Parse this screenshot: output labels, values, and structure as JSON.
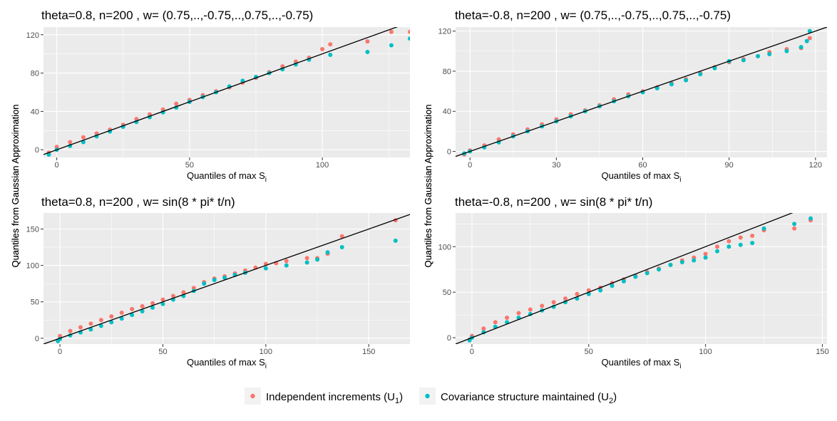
{
  "colors": {
    "independent": "#F8766D",
    "covariance": "#00BFC4",
    "panel_bg": "#EBEBEB",
    "grid": "#FFFFFF",
    "line": "#000000"
  },
  "legend": {
    "independent": {
      "label": "Independent increments (U",
      "sub": "1",
      "close": ")"
    },
    "covariance": {
      "label": "Covariance structure maintained (U",
      "sub": "2",
      "close": ")"
    }
  },
  "chart_data": [
    {
      "type": "scatter",
      "title": "theta=0.8, n=200 , w= (0.75,..,-0.75,..,0.75,..,-0.75)",
      "xlabel": "Quantiles of max S",
      "xlabel_sub": "i",
      "ylabel": "Quantiles from Gaussian Approximation",
      "xlim": [
        -5,
        133
      ],
      "ylim": [
        -8,
        128
      ],
      "xticks": [
        0,
        50,
        100
      ],
      "yticks": [
        0,
        40,
        80,
        120
      ],
      "reference_line": {
        "slope": 1,
        "intercept": 0
      },
      "series": [
        {
          "key": "independent",
          "values": [
            [
              -3,
              -3
            ],
            [
              0,
              3
            ],
            [
              5,
              8
            ],
            [
              10,
              13
            ],
            [
              15,
              17
            ],
            [
              20,
              21
            ],
            [
              25,
              26
            ],
            [
              30,
              32
            ],
            [
              35,
              37
            ],
            [
              40,
              42
            ],
            [
              45,
              48
            ],
            [
              50,
              52
            ],
            [
              55,
              57
            ],
            [
              60,
              61
            ],
            [
              65,
              65
            ],
            [
              70,
              70
            ],
            [
              75,
              75
            ],
            [
              80,
              81
            ],
            [
              85,
              87
            ],
            [
              90,
              92
            ],
            [
              95,
              96
            ],
            [
              100,
              105
            ],
            [
              103,
              110
            ],
            [
              117,
              113
            ],
            [
              126,
              123
            ],
            [
              133,
              123
            ]
          ]
        },
        {
          "key": "covariance",
          "values": [
            [
              -3,
              -5
            ],
            [
              0,
              0
            ],
            [
              5,
              4
            ],
            [
              10,
              8
            ],
            [
              15,
              14
            ],
            [
              20,
              19
            ],
            [
              25,
              24
            ],
            [
              30,
              29
            ],
            [
              35,
              34
            ],
            [
              40,
              39
            ],
            [
              45,
              44
            ],
            [
              50,
              50
            ],
            [
              55,
              55
            ],
            [
              60,
              60
            ],
            [
              65,
              66
            ],
            [
              70,
              72
            ],
            [
              75,
              76
            ],
            [
              80,
              80
            ],
            [
              85,
              84
            ],
            [
              90,
              89
            ],
            [
              95,
              94
            ],
            [
              103,
              99
            ],
            [
              117,
              102
            ],
            [
              126,
              109
            ],
            [
              133,
              116
            ]
          ]
        }
      ]
    },
    {
      "type": "scatter",
      "title": "theta=-0.8, n=200 , w= (0.75,..,-0.75,..,0.75,..,-0.75)",
      "xlabel": "Quantiles of max S",
      "xlabel_sub": "i",
      "ylabel": "Quantiles from Gaussian Approximation",
      "xlim": [
        -5,
        124
      ],
      "ylim": [
        -6,
        124
      ],
      "xticks": [
        0,
        30,
        60,
        90,
        120
      ],
      "yticks": [
        0,
        40,
        80,
        120
      ],
      "reference_line": {
        "slope": 1,
        "intercept": 0
      },
      "series": [
        {
          "key": "independent",
          "values": [
            [
              -2,
              -3
            ],
            [
              0,
              1
            ],
            [
              5,
              6
            ],
            [
              10,
              12
            ],
            [
              15,
              17
            ],
            [
              20,
              22
            ],
            [
              25,
              27
            ],
            [
              30,
              32
            ],
            [
              35,
              37
            ],
            [
              40,
              41
            ],
            [
              45,
              46
            ],
            [
              50,
              52
            ],
            [
              55,
              57
            ],
            [
              60,
              60
            ],
            [
              65,
              64
            ],
            [
              70,
              68
            ],
            [
              75,
              72
            ],
            [
              80,
              78
            ],
            [
              85,
              84
            ],
            [
              90,
              89
            ],
            [
              95,
              92
            ],
            [
              100,
              95
            ],
            [
              104,
              99
            ],
            [
              110,
              102
            ],
            [
              115,
              103
            ],
            [
              118,
              113
            ]
          ]
        },
        {
          "key": "covariance",
          "values": [
            [
              -2,
              -2
            ],
            [
              0,
              0
            ],
            [
              5,
              4
            ],
            [
              10,
              9
            ],
            [
              15,
              15
            ],
            [
              20,
              20
            ],
            [
              25,
              25
            ],
            [
              30,
              30
            ],
            [
              35,
              35
            ],
            [
              40,
              40
            ],
            [
              45,
              45
            ],
            [
              50,
              50
            ],
            [
              55,
              55
            ],
            [
              60,
              59
            ],
            [
              65,
              63
            ],
            [
              70,
              67
            ],
            [
              75,
              71
            ],
            [
              80,
              77
            ],
            [
              85,
              83
            ],
            [
              90,
              90
            ],
            [
              95,
              91
            ],
            [
              100,
              95
            ],
            [
              104,
              97
            ],
            [
              110,
              100
            ],
            [
              115,
              104
            ],
            [
              117,
              110
            ],
            [
              118,
              120
            ]
          ]
        }
      ]
    },
    {
      "type": "scatter",
      "title": "theta=0.8, n=200 , w= sin(8 * pi* t/n)",
      "xlabel": "Quantiles of max S",
      "xlabel_sub": "i",
      "ylabel": "Quantiles from Gaussian Approximation",
      "xlim": [
        -8,
        170
      ],
      "ylim": [
        -8,
        172
      ],
      "xticks": [
        0,
        50,
        100,
        150
      ],
      "yticks": [
        0,
        50,
        100,
        150
      ],
      "reference_line": {
        "slope": 1,
        "intercept": 0
      },
      "series": [
        {
          "key": "independent",
          "values": [
            [
              -1,
              -3
            ],
            [
              0,
              3
            ],
            [
              5,
              10
            ],
            [
              10,
              15
            ],
            [
              15,
              20
            ],
            [
              20,
              25
            ],
            [
              25,
              30
            ],
            [
              30,
              35
            ],
            [
              35,
              40
            ],
            [
              40,
              44
            ],
            [
              45,
              48
            ],
            [
              50,
              53
            ],
            [
              55,
              58
            ],
            [
              60,
              63
            ],
            [
              65,
              69
            ],
            [
              70,
              77
            ],
            [
              75,
              82
            ],
            [
              80,
              85
            ],
            [
              85,
              89
            ],
            [
              90,
              93
            ],
            [
              95,
              97
            ],
            [
              100,
              102
            ],
            [
              105,
              103
            ],
            [
              110,
              106
            ],
            [
              120,
              110
            ],
            [
              125,
              110
            ],
            [
              130,
              116
            ],
            [
              137,
              140
            ],
            [
              163,
              162
            ]
          ]
        },
        {
          "key": "covariance",
          "values": [
            [
              -1,
              -4
            ],
            [
              0,
              -1
            ],
            [
              5,
              4
            ],
            [
              10,
              8
            ],
            [
              15,
              12
            ],
            [
              20,
              17
            ],
            [
              25,
              22
            ],
            [
              30,
              27
            ],
            [
              35,
              32
            ],
            [
              40,
              37
            ],
            [
              45,
              42
            ],
            [
              50,
              47
            ],
            [
              55,
              53
            ],
            [
              60,
              58
            ],
            [
              65,
              65
            ],
            [
              70,
              75
            ],
            [
              75,
              80
            ],
            [
              80,
              83
            ],
            [
              85,
              87
            ],
            [
              90,
              90
            ],
            [
              100,
              96
            ],
            [
              110,
              100
            ],
            [
              120,
              104
            ],
            [
              125,
              108
            ],
            [
              130,
              118
            ],
            [
              137,
              125
            ],
            [
              163,
              134
            ]
          ]
        }
      ]
    },
    {
      "type": "scatter",
      "title": "theta=-0.8, n=200 , w= sin(8 * pi* t/n)",
      "xlabel": "Quantiles of max S",
      "xlabel_sub": "i",
      "ylabel": "Quantiles from Gaussian Approximation",
      "xlim": [
        -7,
        152
      ],
      "ylim": [
        -7,
        137
      ],
      "xticks": [
        0,
        50,
        100,
        150
      ],
      "yticks": [
        0,
        50,
        100
      ],
      "reference_line": {
        "slope": 1,
        "intercept": 0
      },
      "series": [
        {
          "key": "independent",
          "values": [
            [
              -1,
              -2
            ],
            [
              0,
              2
            ],
            [
              5,
              10
            ],
            [
              10,
              17
            ],
            [
              15,
              22
            ],
            [
              20,
              27
            ],
            [
              25,
              31
            ],
            [
              30,
              35
            ],
            [
              35,
              39
            ],
            [
              40,
              43
            ],
            [
              45,
              48
            ],
            [
              50,
              52
            ],
            [
              55,
              55
            ],
            [
              60,
              60
            ],
            [
              65,
              64
            ],
            [
              70,
              68
            ],
            [
              75,
              72
            ],
            [
              80,
              76
            ],
            [
              85,
              80
            ],
            [
              90,
              85
            ],
            [
              95,
              88
            ],
            [
              100,
              92
            ],
            [
              105,
              100
            ],
            [
              110,
              106
            ],
            [
              115,
              110
            ],
            [
              120,
              112
            ],
            [
              125,
              118
            ],
            [
              138,
              120
            ],
            [
              145,
              129
            ]
          ]
        },
        {
          "key": "covariance",
          "values": [
            [
              -1,
              -3
            ],
            [
              0,
              0
            ],
            [
              5,
              6
            ],
            [
              10,
              12
            ],
            [
              15,
              17
            ],
            [
              20,
              22
            ],
            [
              25,
              26
            ],
            [
              30,
              30
            ],
            [
              35,
              34
            ],
            [
              40,
              39
            ],
            [
              45,
              43
            ],
            [
              50,
              48
            ],
            [
              55,
              52
            ],
            [
              60,
              57
            ],
            [
              65,
              62
            ],
            [
              70,
              67
            ],
            [
              75,
              71
            ],
            [
              80,
              75
            ],
            [
              85,
              80
            ],
            [
              90,
              83
            ],
            [
              95,
              85
            ],
            [
              100,
              88
            ],
            [
              105,
              95
            ],
            [
              110,
              100
            ],
            [
              115,
              102
            ],
            [
              120,
              104
            ],
            [
              125,
              120
            ],
            [
              138,
              125
            ],
            [
              145,
              131
            ]
          ]
        }
      ]
    }
  ]
}
